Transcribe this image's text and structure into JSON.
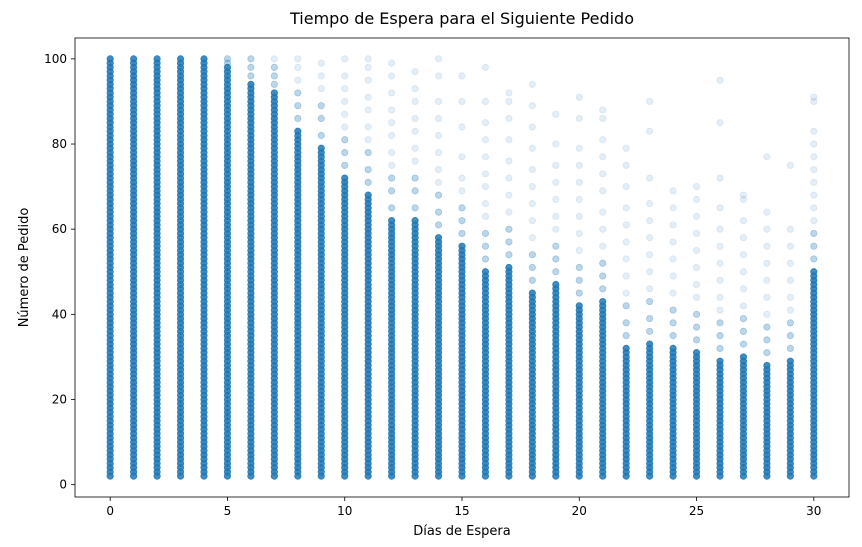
{
  "chart_data": {
    "type": "scatter",
    "title": "Tiempo de Espera para el Siguiente Pedido",
    "xlabel": "Días de Espera",
    "ylabel": "Número de Pedido",
    "xlim": [
      -1.5,
      31.5
    ],
    "ylim": [
      -2.9,
      104.9
    ],
    "xticks": [
      0,
      5,
      10,
      15,
      20,
      25,
      30
    ],
    "yticks": [
      0,
      20,
      40,
      60,
      80,
      100
    ],
    "grid": false,
    "legend": "none",
    "marker_color": "#1f77b4",
    "marker_alpha": 0.1,
    "columns": [
      {
        "x": 0,
        "solid_max": 100,
        "sparse": []
      },
      {
        "x": 1,
        "solid_max": 100,
        "sparse": []
      },
      {
        "x": 2,
        "solid_max": 100,
        "sparse": []
      },
      {
        "x": 3,
        "solid_max": 100,
        "sparse": []
      },
      {
        "x": 4,
        "solid_max": 100,
        "sparse": []
      },
      {
        "x": 5,
        "solid_max": 98,
        "sparse": [
          99,
          100
        ]
      },
      {
        "x": 6,
        "solid_max": 94,
        "sparse": [
          96,
          98,
          100
        ]
      },
      {
        "x": 7,
        "solid_max": 92,
        "sparse": [
          94,
          96,
          98,
          100
        ]
      },
      {
        "x": 8,
        "solid_max": 83,
        "sparse": [
          86,
          89,
          92,
          95,
          98,
          100
        ]
      },
      {
        "x": 9,
        "solid_max": 79,
        "sparse": [
          82,
          86,
          89,
          93,
          96,
          99
        ]
      },
      {
        "x": 10,
        "solid_max": 72,
        "sparse": [
          75,
          78,
          81,
          84,
          87,
          90,
          93,
          96,
          100
        ]
      },
      {
        "x": 11,
        "solid_max": 68,
        "sparse": [
          71,
          74,
          78,
          81,
          84,
          88,
          91,
          95,
          98,
          100
        ]
      },
      {
        "x": 12,
        "solid_max": 62,
        "sparse": [
          65,
          69,
          72,
          75,
          78,
          82,
          85,
          88,
          92,
          96,
          99
        ]
      },
      {
        "x": 13,
        "solid_max": 62,
        "sparse": [
          65,
          69,
          72,
          76,
          79,
          83,
          86,
          90,
          93,
          97
        ]
      },
      {
        "x": 14,
        "solid_max": 58,
        "sparse": [
          61,
          64,
          68,
          71,
          74,
          78,
          82,
          86,
          90,
          96,
          100
        ]
      },
      {
        "x": 15,
        "solid_max": 56,
        "sparse": [
          59,
          62,
          65,
          69,
          72,
          77,
          84,
          90,
          96
        ]
      },
      {
        "x": 16,
        "solid_max": 50,
        "sparse": [
          53,
          56,
          59,
          63,
          66,
          70,
          73,
          77,
          81,
          85,
          90,
          98
        ]
      },
      {
        "x": 17,
        "solid_max": 51,
        "sparse": [
          54,
          57,
          60,
          64,
          68,
          72,
          76,
          81,
          86,
          90,
          92
        ]
      },
      {
        "x": 18,
        "solid_max": 45,
        "sparse": [
          48,
          51,
          54,
          58,
          62,
          66,
          70,
          74,
          79,
          84,
          89,
          94
        ]
      },
      {
        "x": 19,
        "solid_max": 47,
        "sparse": [
          50,
          53,
          56,
          60,
          63,
          67,
          71,
          75,
          80,
          87
        ]
      },
      {
        "x": 20,
        "solid_max": 42,
        "sparse": [
          45,
          48,
          51,
          55,
          59,
          63,
          67,
          71,
          75,
          79,
          86,
          91
        ]
      },
      {
        "x": 21,
        "solid_max": 43,
        "sparse": [
          46,
          49,
          52,
          56,
          60,
          64,
          69,
          73,
          77,
          81,
          86,
          88
        ]
      },
      {
        "x": 22,
        "solid_max": 32,
        "sparse": [
          35,
          38,
          42,
          45,
          49,
          53,
          57,
          61,
          65,
          70,
          75,
          79
        ]
      },
      {
        "x": 23,
        "solid_max": 33,
        "sparse": [
          36,
          39,
          43,
          46,
          50,
          54,
          58,
          62,
          66,
          72,
          83,
          90
        ]
      },
      {
        "x": 24,
        "solid_max": 32,
        "sparse": [
          35,
          38,
          41,
          45,
          49,
          53,
          57,
          61,
          65,
          69
        ]
      },
      {
        "x": 25,
        "solid_max": 31,
        "sparse": [
          34,
          37,
          40,
          44,
          47,
          51,
          55,
          59,
          63,
          67,
          70
        ]
      },
      {
        "x": 26,
        "solid_max": 29,
        "sparse": [
          32,
          35,
          38,
          41,
          44,
          48,
          52,
          56,
          60,
          65,
          72,
          85,
          95
        ]
      },
      {
        "x": 27,
        "solid_max": 30,
        "sparse": [
          33,
          36,
          39,
          42,
          46,
          50,
          54,
          58,
          62,
          67,
          68
        ]
      },
      {
        "x": 28,
        "solid_max": 28,
        "sparse": [
          31,
          34,
          37,
          40,
          44,
          48,
          52,
          56,
          60,
          64,
          77
        ]
      },
      {
        "x": 29,
        "solid_max": 29,
        "sparse": [
          32,
          35,
          38,
          41,
          44,
          48,
          52,
          56,
          60,
          75
        ]
      },
      {
        "x": 30,
        "solid_max": 50,
        "sparse": [
          53,
          56,
          59,
          62,
          65,
          68,
          71,
          74,
          77,
          80,
          83,
          90,
          91
        ]
      }
    ]
  }
}
